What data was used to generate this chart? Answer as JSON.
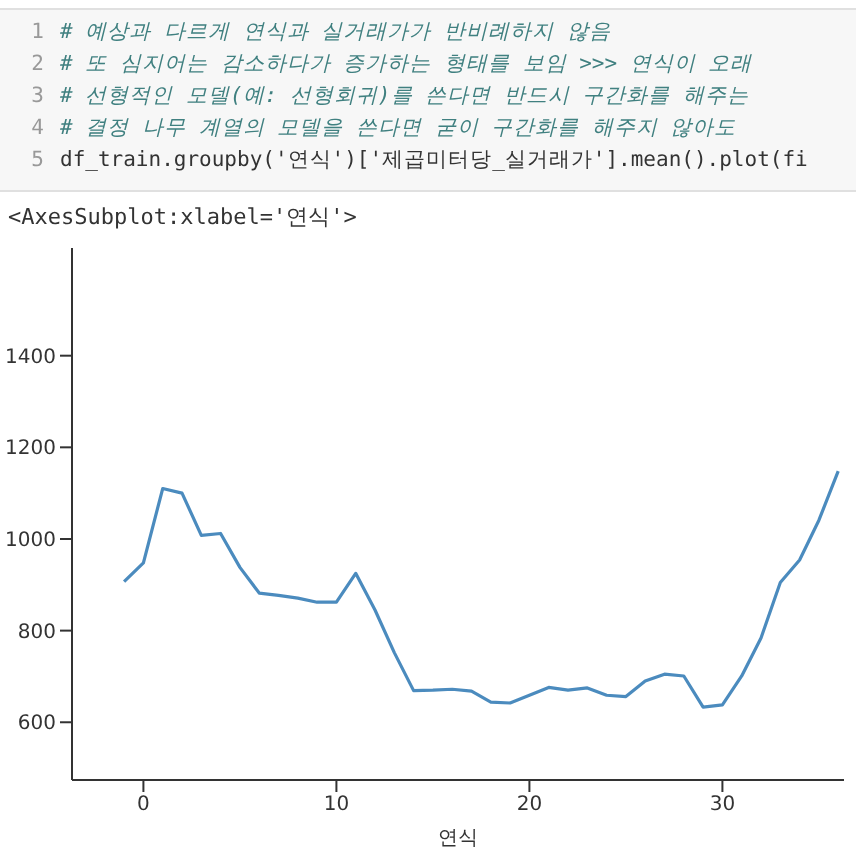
{
  "chart_data": {
    "type": "line",
    "xlabel": "연식",
    "annotations": [
      "1",
      "# 예상과 다르게 연식과 실거래가가 반비례하지 않음",
      "2",
      "# 또 심지어는 감소하다가 증가하는 형태를 보임 >>> 연식이 오래",
      "3",
      "# 선형적인 모델(예: 선형회귀)를 쓴다면 반드시 구간화를 해주는",
      "4",
      "# 결정 나무 계열의 모델을 쓴다면 굳이 구간화를 해주지 않아도",
      "5",
      "df_train.groupby('연식')['제곱미터당_실거래가'].mean().plot(fi",
      "<AxesSubplot:xlabel='연식'>"
    ],
    "x": [
      -1,
      0,
      1,
      2,
      3,
      4,
      5,
      6,
      7,
      8,
      9,
      10,
      11,
      12,
      13,
      14,
      15,
      16,
      17,
      18,
      19,
      20,
      21,
      22,
      23,
      24,
      25,
      26,
      27,
      28,
      29,
      30,
      31,
      32,
      33,
      34,
      35,
      36
    ],
    "series": [
      {
        "color": "#4b8bbe",
        "values": [
          907,
          948,
          1110,
          1100,
          1008,
          1012,
          938,
          882,
          877,
          871,
          862,
          862,
          925,
          845,
          752,
          669,
          670,
          672,
          668,
          644,
          642,
          659,
          676,
          670,
          675,
          659,
          656,
          690,
          705,
          701,
          633,
          638,
          701,
          784,
          905,
          954,
          1041,
          1148
        ]
      }
    ],
    "xlim": [
      -3.7,
      36.3
    ],
    "xticks": [
      0,
      10,
      20,
      30
    ],
    "ylim": [
      474,
      1635
    ],
    "yticks": [
      600,
      800,
      1000,
      1200,
      1400
    ],
    "grid": false,
    "legend": false,
    "marker": "none",
    "line_style": "solid"
  }
}
